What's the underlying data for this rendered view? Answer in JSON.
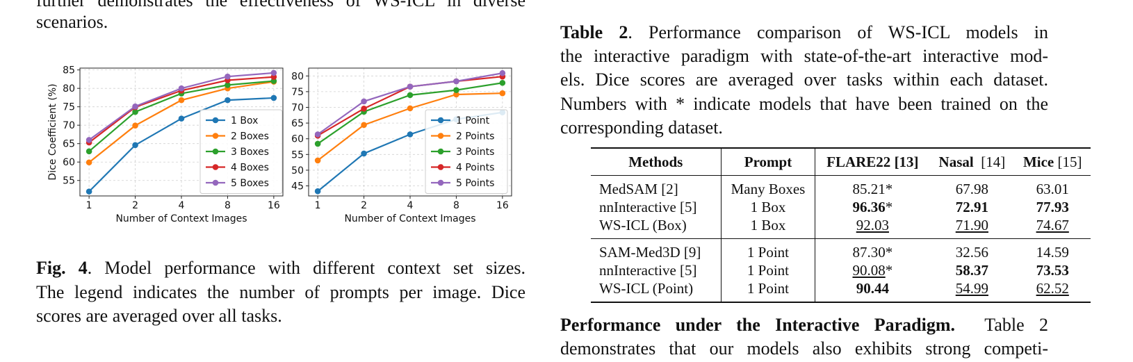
{
  "left_column": {
    "top_text_line1": "further demonstrates the effectiveness of WS-ICL in diverse",
    "top_text_line2": "scenarios.",
    "fig_label": "Fig. 4",
    "fig_caption_line1": ".  Model performance with different context set sizes.",
    "fig_caption_line2": "The legend indicates the number of prompts per image. Dice",
    "fig_caption_line3": "scores are averaged over all tasks."
  },
  "right_column": {
    "table_label": "Table 2",
    "table_caption_line1": ".  Performance comparison of WS-ICL models in",
    "table_caption_line2": "the interactive paradigm with state-of-the-art interactive mod-",
    "table_caption_line3": "els.  Dice scores are averaged over tasks within each dataset.",
    "table_caption_line4": "Numbers with * indicate models that have been trained on the",
    "table_caption_line5": "corresponding dataset.",
    "section_heading": "Performance under the Interactive Paradigm.",
    "section_text": "Table 2",
    "section_text_line2": "demonstrates that our models also exhibits strong competi-"
  },
  "table": {
    "headers": {
      "methods": "Methods",
      "prompt": "Prompt",
      "flare": "FLARE22",
      "flare_ref": " [13]",
      "nasal": "Nasal",
      "nasal_ref": "  [14]",
      "mice": "Mice",
      "mice_ref": " [15]"
    },
    "rows": [
      {
        "method": "MedSAM [2]",
        "prompt": "Many Boxes",
        "flare": "85.21*",
        "nasal": "67.98",
        "mice": "63.01"
      },
      {
        "method": "nnInteractive [5]",
        "prompt": "1 Box",
        "flare": "96.36",
        "flare_star": "*",
        "nasal": "72.91",
        "mice": "77.93"
      },
      {
        "method": "WS-ICL (Box)",
        "prompt": "1 Box",
        "flare": "92.03",
        "nasal": "71.90",
        "mice": "74.67"
      },
      {
        "method": "SAM-Med3D [9]",
        "prompt": "1 Point",
        "flare": "87.30*",
        "nasal": "32.56",
        "mice": "14.59"
      },
      {
        "method": "nnInteractive [5]",
        "prompt": "1 Point",
        "flare": "90.08",
        "flare_star": "*",
        "nasal": "58.37",
        "mice": "73.53"
      },
      {
        "method": "WS-ICL (Point)",
        "prompt": "1 Point",
        "flare": "90.44",
        "nasal": "54.99",
        "mice": "62.52"
      }
    ]
  },
  "chart_data": [
    {
      "type": "line",
      "xlabel": "Number of Context Images",
      "ylabel": "Dice Coefficient (%)",
      "x": [
        "1",
        "2",
        "4",
        "8",
        "16"
      ],
      "yticks": [
        55,
        60,
        65,
        70,
        75,
        80,
        85
      ],
      "ylim": [
        50.8,
        85.5
      ],
      "grid": true,
      "legend_position": "lower-right",
      "series": [
        {
          "name": "1 Box",
          "color": "#1f77b4",
          "values": [
            52.0,
            64.6,
            71.8,
            76.8,
            77.4
          ]
        },
        {
          "name": "2 Boxes",
          "color": "#ff7f0e",
          "values": [
            59.9,
            69.9,
            76.8,
            80.0,
            81.8
          ]
        },
        {
          "name": "3 Boxes",
          "color": "#2ca02c",
          "values": [
            62.9,
            73.6,
            78.6,
            80.9,
            82.0
          ]
        },
        {
          "name": "4 Boxes",
          "color": "#d62728",
          "values": [
            65.3,
            74.9,
            79.4,
            82.2,
            83.1
          ]
        },
        {
          "name": "5 Boxes",
          "color": "#9467bd",
          "values": [
            66.0,
            75.1,
            80.0,
            83.2,
            84.2
          ]
        }
      ]
    },
    {
      "type": "line",
      "xlabel": "Number of Context Images",
      "ylabel": "",
      "x": [
        "1",
        "2",
        "4",
        "8",
        "16"
      ],
      "yticks": [
        45,
        50,
        55,
        60,
        65,
        70,
        75,
        80
      ],
      "ylim": [
        41.8,
        82.5
      ],
      "grid": true,
      "legend_position": "lower-right",
      "series": [
        {
          "name": "1 Point",
          "color": "#1f77b4",
          "values": [
            43.3,
            55.3,
            61.4,
            66.2,
            68.4
          ]
        },
        {
          "name": "2 Points",
          "color": "#ff7f0e",
          "values": [
            53.1,
            64.4,
            69.7,
            74.1,
            74.5
          ]
        },
        {
          "name": "3 Points",
          "color": "#2ca02c",
          "values": [
            58.4,
            68.6,
            73.9,
            75.5,
            77.8
          ]
        },
        {
          "name": "4 Points",
          "color": "#d62728",
          "values": [
            61.0,
            69.6,
            76.6,
            78.3,
            79.8
          ]
        },
        {
          "name": "5 Points",
          "color": "#9467bd",
          "values": [
            61.4,
            71.9,
            76.6,
            78.3,
            80.9
          ]
        }
      ]
    }
  ]
}
